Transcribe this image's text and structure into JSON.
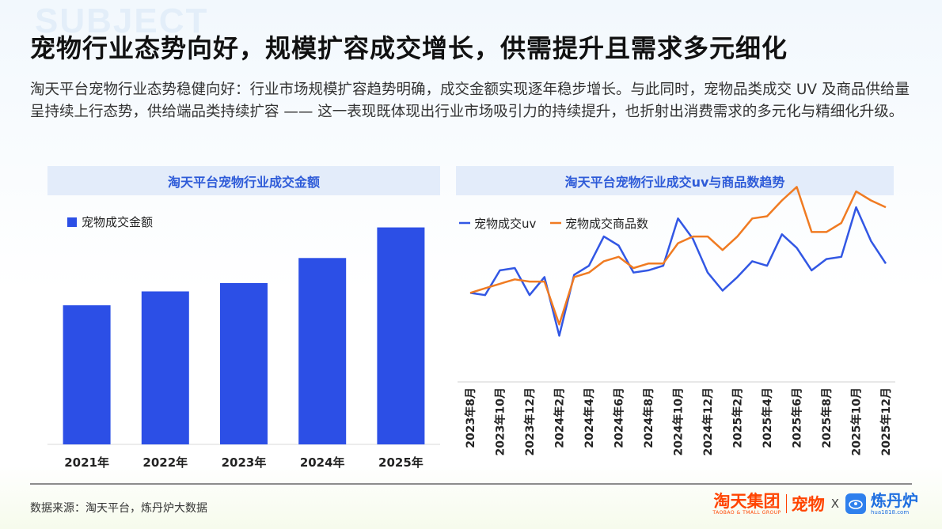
{
  "watermark": "SUBJECT",
  "title": "宠物行业态势向好，规模扩容成交增长，供需提升且需求多元细化",
  "intro": "淘天平台宠物行业态势稳健向好：行业市场规模扩容趋势明确，成交金额实现逐年稳步增长。与此同时，宠物品类成交 UV 及商品供给量呈持续上行态势，供给端品类持续扩容 —— 这一表现既体现出行业市场吸引力的持续提升，也折射出消费需求的多元化与精细化升级。",
  "footer": {
    "source": "数据来源：淘天平台，炼丹炉大数据",
    "logo_tmall": "淘天集团",
    "logo_tmall_sub": "TAOBAO & TMALL GROUP",
    "logo_pet": "宠物",
    "logo_x": "X",
    "logo_ldl": "炼丹炉",
    "logo_ldl_sub": "hua1818.com"
  },
  "colors": {
    "bar": "#2c4fe6",
    "uv": "#3257e4",
    "items": "#f07b22",
    "panel_head_bg": "#e3ecfa",
    "panel_head_text": "#2e5bd8"
  },
  "chart_data": [
    {
      "type": "bar",
      "title": "淘天平台宠物行业成交金额",
      "legend": "宠物成交金额",
      "legend_position": "top-left",
      "categories": [
        "2021年",
        "2022年",
        "2023年",
        "2024年",
        "2025年"
      ],
      "values": [
        50,
        55,
        58,
        67,
        78
      ],
      "ylim": [
        0,
        83
      ],
      "yaxis_visible": false,
      "grid": false
    },
    {
      "type": "line",
      "title": "淘天平台宠物行业成交uv与商品数趋势",
      "legend_position": "top-left",
      "x": [
        "2023年8月",
        "2023年9月",
        "2023年10月",
        "2023年11月",
        "2023年12月",
        "2024年1月",
        "2024年2月",
        "2024年3月",
        "2024年4月",
        "2024年5月",
        "2024年6月",
        "2024年7月",
        "2024年8月",
        "2024年9月",
        "2024年10月",
        "2024年11月",
        "2024年12月",
        "2025年1月",
        "2025年2月",
        "2025年3月",
        "2025年4月",
        "2025年5月",
        "2025年6月",
        "2025年7月",
        "2025年8月",
        "2025年9月",
        "2025年10月",
        "2025年11月",
        "2025年12月"
      ],
      "xticks_shown": [
        "2023年8月",
        "2023年10月",
        "2023年12月",
        "2024年2月",
        "2024年4月",
        "2024年6月",
        "2024年8月",
        "2024年10月",
        "2024年12月",
        "2025年2月",
        "2025年4月",
        "2025年6月",
        "2025年8月",
        "2025年10月",
        "2025年12月"
      ],
      "ylim": [
        0,
        100
      ],
      "yaxis_visible": false,
      "grid": false,
      "series": [
        {
          "name": "宠物成交uv",
          "values": [
            49,
            48,
            59,
            60,
            48,
            56,
            30,
            57,
            61,
            74,
            70,
            58,
            59,
            61,
            82,
            73,
            58,
            50,
            56,
            63,
            61,
            75,
            69,
            59,
            64,
            65,
            87,
            72,
            62
          ]
        },
        {
          "name": "宠物成交商品数",
          "values": [
            49,
            51,
            53,
            55,
            54,
            54,
            35,
            56,
            58,
            63,
            65,
            60,
            62,
            62,
            71,
            74,
            74,
            68,
            74,
            82,
            83,
            90,
            96,
            76,
            76,
            80,
            94,
            90,
            87
          ]
        }
      ]
    }
  ]
}
